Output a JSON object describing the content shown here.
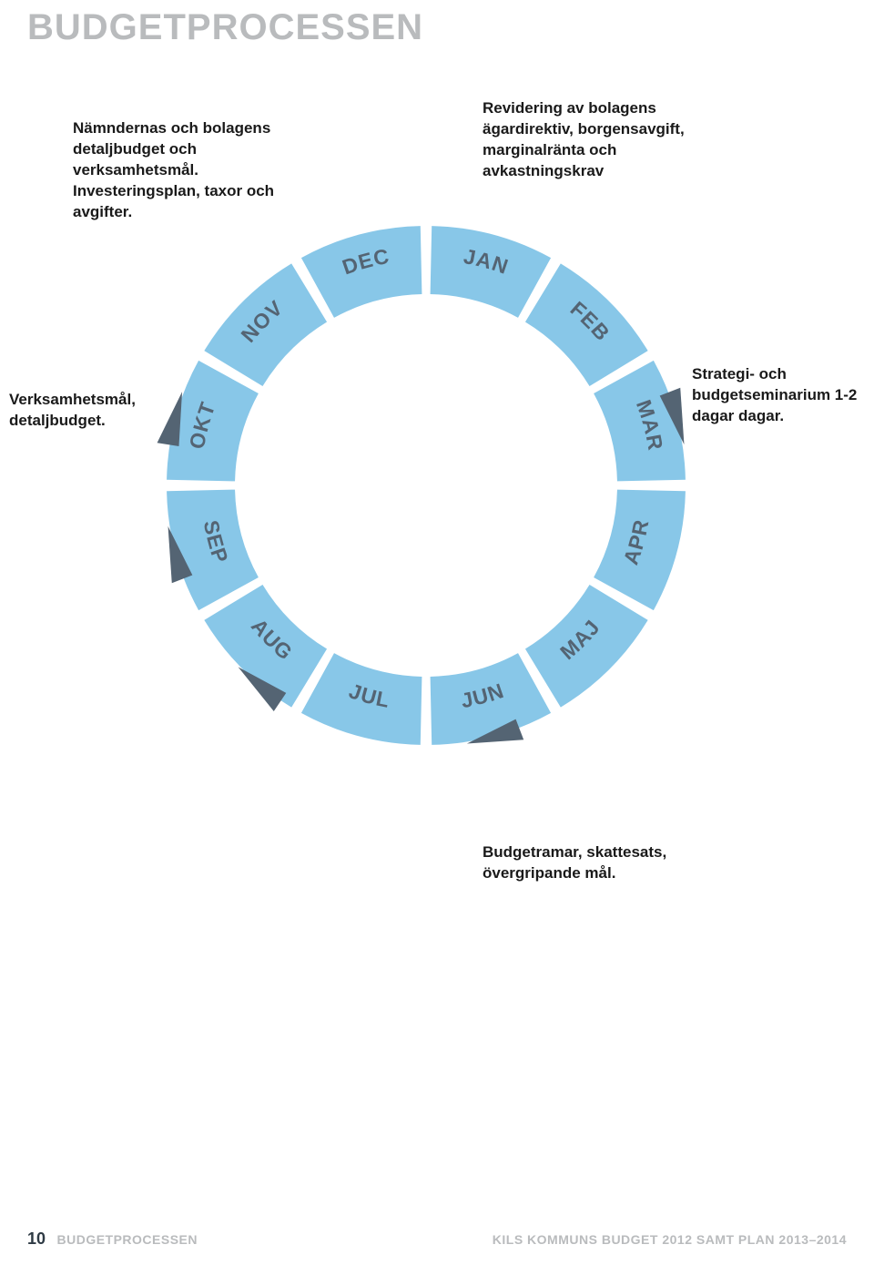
{
  "title": "BUDGETPROCESSEN",
  "annotations": {
    "topleft": "Nämndernas och bolagens detaljbudget och verksamhetsmål. Investeringsplan, taxor och avgifter.",
    "topright": "Revidering av bolagens ägardirektiv, borgensavgift, marginalränta och avkastningskrav",
    "left": "Verksamhetsmål, detaljbudget.",
    "right": "Strategi- och budgetseminarium 1-2 dagar dagar.",
    "bottom": "Budgetramar, skattesats, övergripande mål."
  },
  "wheel": {
    "type": "radial-segments",
    "months": [
      "JAN",
      "FEB",
      "MAR",
      "APR",
      "MAJ",
      "JUN",
      "JUL",
      "AUG",
      "SEP",
      "OKT",
      "NOV",
      "DEC"
    ],
    "n_segments": 12,
    "outer_radius": 285,
    "inner_radius": 210,
    "gap_deg": 2.5,
    "segment_color": "#88c7e8",
    "label_color": "#546473",
    "label_fontsize": 23,
    "label_fontweight": 800,
    "center_bg": "#ffffff",
    "arrows": [
      {
        "angle_deg": -75,
        "color": "#546473"
      },
      {
        "angle_deg": 75,
        "color": "#546473"
      },
      {
        "angle_deg": 165,
        "color": "#546473"
      },
      {
        "angle_deg": -140,
        "color": "#546473"
      },
      {
        "angle_deg": -105,
        "color": "#546473"
      }
    ],
    "arrow_size": 22
  },
  "footer": {
    "page_num": "10",
    "left_label": "BUDGETPROCESSEN",
    "right_label": "KILS KOMMUNS BUDGET 2012 SAMT PLAN 2013–2014"
  },
  "colors": {
    "title_gray": "#b9bbbd",
    "text_dark": "#1a1a1a",
    "segment": "#88c7e8",
    "label": "#546473",
    "arrow": "#546473",
    "footer_num": "#2e3a44",
    "bg": "#ffffff"
  }
}
